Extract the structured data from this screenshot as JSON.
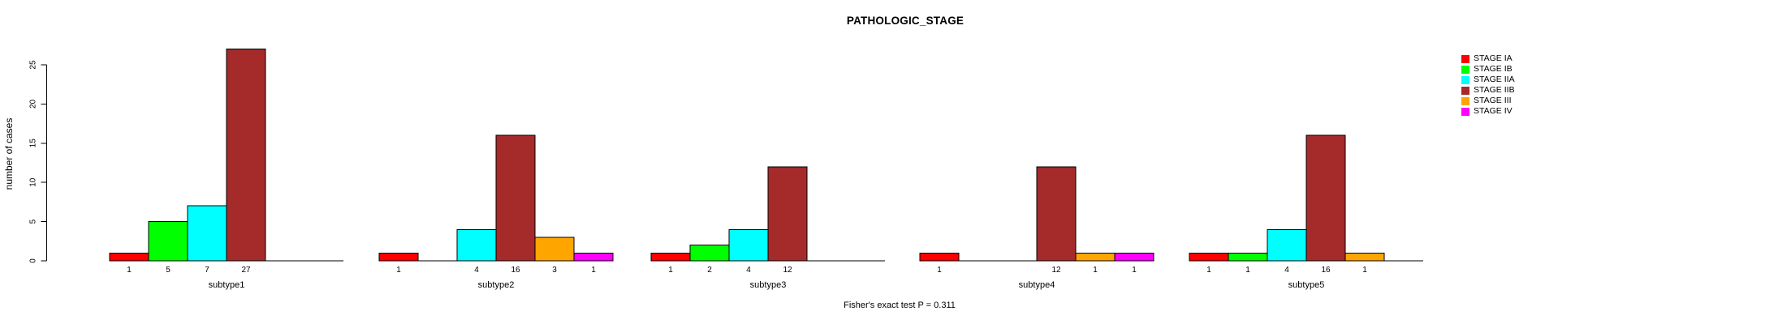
{
  "title": "PATHOLOGIC_STAGE",
  "footer_note": "Fisher's exact test P = 0.311",
  "y_axis": {
    "label": "number of cases",
    "ticks": [
      0,
      5,
      10,
      15,
      20,
      25
    ]
  },
  "legend": {
    "items": [
      {
        "label": "STAGE IA",
        "color": "#FF0000"
      },
      {
        "label": "STAGE IB",
        "color": "#00FF00"
      },
      {
        "label": "STAGE IIA",
        "color": "#00FFFF"
      },
      {
        "label": "STAGE IIB",
        "color": "#A52A2A"
      },
      {
        "label": "STAGE III",
        "color": "#FFA500"
      },
      {
        "label": "STAGE IV",
        "color": "#FF00FF"
      }
    ]
  },
  "chart_data": {
    "type": "bar",
    "title": "PATHOLOGIC_STAGE",
    "ylabel": "number of cases",
    "yticks": [
      0,
      5,
      10,
      15,
      20,
      25
    ],
    "ylim": [
      0,
      27
    ],
    "grid": false,
    "legend_position": "top-right",
    "stages": [
      "STAGE IA",
      "STAGE IB",
      "STAGE IIA",
      "STAGE IIB",
      "STAGE III",
      "STAGE IV"
    ],
    "colors": [
      "#FF0000",
      "#00FF00",
      "#00FFFF",
      "#A52A2A",
      "#FFA500",
      "#FF00FF"
    ],
    "panels": [
      {
        "name": "subtype1",
        "values": [
          1,
          5,
          7,
          27,
          0,
          0
        ]
      },
      {
        "name": "subtype2",
        "values": [
          1,
          0,
          4,
          16,
          3,
          1
        ]
      },
      {
        "name": "subtype3",
        "values": [
          1,
          2,
          4,
          12,
          0,
          0
        ]
      },
      {
        "name": "subtype4",
        "values": [
          1,
          0,
          0,
          12,
          1,
          1
        ]
      },
      {
        "name": "subtype5",
        "values": [
          1,
          1,
          4,
          16,
          1,
          0
        ]
      }
    ],
    "bar_value_labels": "each nonzero bar is labeled with its value below the x-axis",
    "annotation": "Fisher's exact test P = 0.311"
  }
}
